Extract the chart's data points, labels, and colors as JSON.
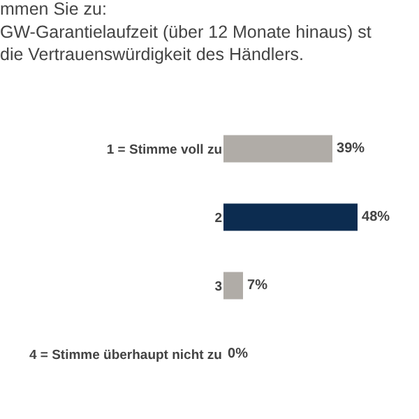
{
  "chart_data": {
    "type": "bar",
    "orientation": "horizontal",
    "title": "mmen Sie zu:\nGW-Garantielaufzeit (über 12 Monate hinaus) st\ndie Vertrauenswürdigkeit des Händlers.",
    "categories": [
      "1 = Stimme voll zu",
      "2",
      "3",
      "4 = Stimme überhaupt nicht zu"
    ],
    "values": [
      39,
      48,
      7,
      0
    ],
    "colors": [
      "#b0aca7",
      "#0c2c50",
      "#b0aca7",
      "#b0aca7"
    ],
    "value_labels": [
      "39%",
      "48%",
      "7%",
      "0%"
    ],
    "xlim": [
      0,
      70
    ],
    "tick_labels": "y",
    "grid": false,
    "legend": false
  }
}
